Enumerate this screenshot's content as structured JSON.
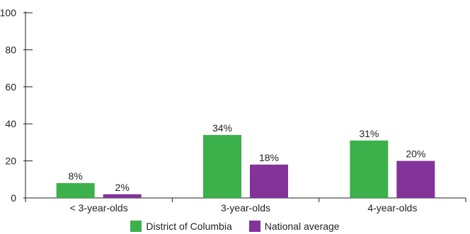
{
  "chart_data": {
    "type": "bar",
    "categories": [
      "< 3-year-olds",
      "3-year-olds",
      "4-year-olds"
    ],
    "series": [
      {
        "name": "District of Columbia",
        "values": [
          8,
          34,
          31
        ],
        "labels": [
          "8%",
          "34%",
          "31%"
        ],
        "color": "#3cb04a"
      },
      {
        "name": "National average",
        "values": [
          2,
          18,
          20
        ],
        "labels": [
          "2%",
          "18%",
          "20%"
        ],
        "color": "#83339a"
      }
    ],
    "title": "",
    "xlabel": "",
    "ylabel": "",
    "ylim": [
      0,
      100
    ],
    "yticks": [
      0,
      20,
      40,
      60,
      80,
      100
    ],
    "grid": false,
    "legend_position": "bottom"
  }
}
